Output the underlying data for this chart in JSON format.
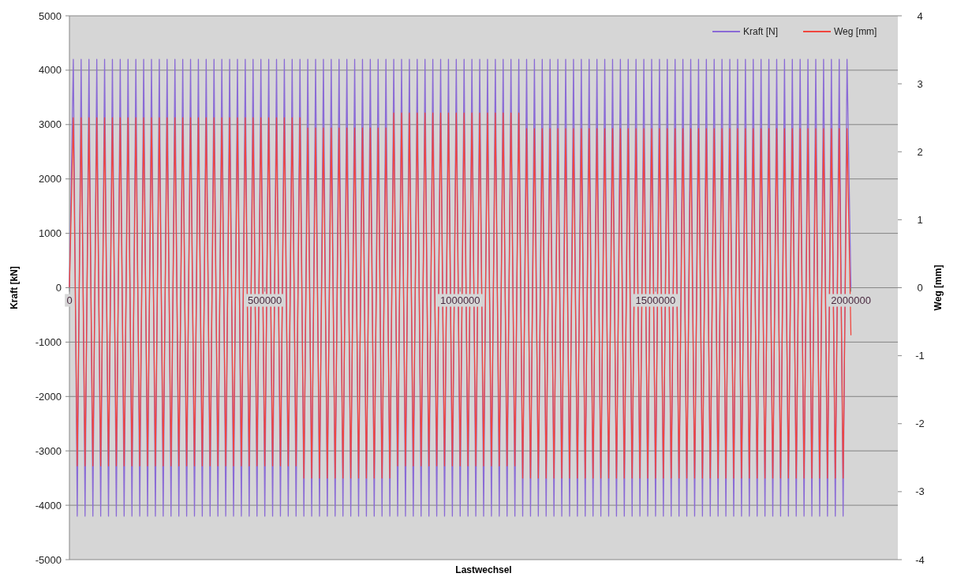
{
  "chart_data": {
    "type": "line",
    "xlabel": "Lastwechsel",
    "ylabel": "Kraft [kN]",
    "y2label": "Weg [mm]",
    "xlim": [
      0,
      2120000
    ],
    "xticks": [
      0,
      500000,
      1000000,
      1500000,
      2000000
    ],
    "ylim": [
      -5000,
      5000
    ],
    "yticks": [
      -5000,
      -4000,
      -3000,
      -2000,
      -1000,
      0,
      1000,
      2000,
      3000,
      4000,
      5000
    ],
    "y2lim": [
      -4,
      4
    ],
    "y2ticks": [
      -4,
      -3,
      -2,
      -1,
      0,
      1,
      2,
      3,
      4
    ],
    "grid": "y",
    "legend": "top right",
    "marker": "none",
    "line_style": "solid",
    "x": [
      0,
      10000,
      20000,
      30000,
      40000,
      50000,
      60000,
      70000,
      80000,
      90000,
      100000,
      110000,
      120000,
      130000,
      140000,
      150000,
      160000,
      170000,
      180000,
      190000,
      200000,
      210000,
      220000,
      230000,
      240000,
      250000,
      260000,
      270000,
      280000,
      290000,
      300000,
      310000,
      320000,
      330000,
      340000,
      350000,
      360000,
      370000,
      380000,
      390000,
      400000,
      410000,
      420000,
      430000,
      440000,
      450000,
      460000,
      470000,
      480000,
      490000,
      500000,
      510000,
      520000,
      530000,
      540000,
      550000,
      560000,
      570000,
      580000,
      590000,
      600000,
      610000,
      620000,
      630000,
      640000,
      650000,
      660000,
      670000,
      680000,
      690000,
      700000,
      710000,
      720000,
      730000,
      740000,
      750000,
      760000,
      770000,
      780000,
      790000,
      800000,
      810000,
      820000,
      830000,
      840000,
      850000,
      860000,
      870000,
      880000,
      890000,
      900000,
      910000,
      920000,
      930000,
      940000,
      950000,
      960000,
      970000,
      980000,
      990000,
      1000000,
      1010000,
      1020000,
      1030000,
      1040000,
      1050000,
      1060000,
      1070000,
      1080000,
      1090000,
      1100000,
      1110000,
      1120000,
      1130000,
      1140000,
      1150000,
      1160000,
      1170000,
      1180000,
      1190000,
      1200000,
      1210000,
      1220000,
      1230000,
      1240000,
      1250000,
      1260000,
      1270000,
      1280000,
      1290000,
      1300000,
      1310000,
      1320000,
      1330000,
      1340000,
      1350000,
      1360000,
      1370000,
      1380000,
      1390000,
      1400000,
      1410000,
      1420000,
      1430000,
      1440000,
      1450000,
      1460000,
      1470000,
      1480000,
      1490000,
      1500000,
      1510000,
      1520000,
      1530000,
      1540000,
      1550000,
      1560000,
      1570000,
      1580000,
      1590000,
      1600000,
      1610000,
      1620000,
      1630000,
      1640000,
      1650000,
      1660000,
      1670000,
      1680000,
      1690000,
      1700000,
      1710000,
      1720000,
      1730000,
      1740000,
      1750000,
      1760000,
      1770000,
      1780000,
      1790000,
      1800000,
      1810000,
      1820000,
      1830000,
      1840000,
      1850000,
      1860000,
      1870000,
      1880000,
      1890000,
      1900000,
      1910000,
      1920000,
      1930000,
      1940000,
      1950000,
      1960000,
      1970000,
      1980000,
      1990000,
      2000000
    ],
    "series": [
      {
        "name": "Kraft [N]",
        "color": "#8a6ad6",
        "axis": "y",
        "values": [
          0,
          4200,
          -4200,
          4200,
          -4200,
          4200,
          -4200,
          4200,
          -4200,
          4200,
          -4200,
          4200,
          -4200,
          4200,
          -4200,
          4200,
          -4200,
          4200,
          -4200,
          4200,
          -4200,
          4200,
          -4200,
          4200,
          -4200,
          4200,
          -4200,
          4200,
          -4200,
          4200,
          -4200,
          4200,
          -4200,
          4200,
          -4200,
          4200,
          -4200,
          4200,
          -4200,
          4200,
          -4200,
          4200,
          -4200,
          4200,
          -4200,
          4200,
          -4200,
          4200,
          -4200,
          4200,
          -4200,
          4200,
          -4200,
          4200,
          -4200,
          4200,
          -4200,
          4200,
          -4200,
          4200,
          -4200,
          4200,
          -4200,
          4200,
          -4200,
          4200,
          -4200,
          4200,
          -4200,
          4200,
          -4200,
          4200,
          -4200,
          4200,
          -4200,
          4200,
          -4200,
          4200,
          -4200,
          4200,
          -4200,
          4200,
          -4200,
          4200,
          -4200,
          4200,
          -4200,
          4200,
          -4200,
          4200,
          -4200,
          4200,
          -4200,
          4200,
          -4200,
          4200,
          -4200,
          4200,
          -4200,
          4200,
          -4200,
          4200,
          -4200,
          4200,
          -4200,
          4200,
          -4200,
          4200,
          -4200,
          4200,
          -4200,
          4200,
          -4200,
          4200,
          -4200,
          4200,
          -4200,
          4200,
          -4200,
          4200,
          -4200,
          4200,
          -4200,
          4200,
          -4200,
          4200,
          -4200,
          4200,
          -4200,
          4200,
          -4200,
          4200,
          -4200,
          4200,
          -4200,
          4200,
          -4200,
          4200,
          -4200,
          4200,
          -4200,
          4200,
          -4200,
          4200,
          -4200,
          4200,
          -4200,
          4200,
          -4200,
          4200,
          -4200,
          4200,
          -4200,
          4200,
          -4200,
          4200,
          -4200,
          4200,
          -4200,
          4200,
          -4200,
          4200,
          -4200,
          4200,
          -4200,
          4200,
          -4200,
          4200,
          -4200,
          4200,
          -4200,
          4200,
          -4200,
          4200,
          -4200,
          4200,
          -4200,
          4200,
          -4200,
          4200,
          -4200,
          4200,
          -4200,
          4200,
          -4200,
          4200,
          -4200,
          4200,
          -4200,
          4200,
          -4200,
          4200,
          -4200,
          4200,
          -4200,
          4200,
          -4200,
          4200,
          -4200,
          4200,
          0
        ]
      },
      {
        "name": "Weg [mm]",
        "color": "#f0463e",
        "axis": "y2",
        "values": [
          0,
          2.5,
          -2.62,
          2.5,
          -2.62,
          2.5,
          -2.62,
          2.5,
          -2.62,
          2.5,
          -2.62,
          2.5,
          -2.62,
          2.5,
          -2.62,
          2.5,
          -2.62,
          2.5,
          -2.62,
          2.5,
          -2.62,
          2.5,
          -2.62,
          2.5,
          -2.62,
          2.5,
          -2.62,
          2.5,
          -2.62,
          2.5,
          -2.62,
          2.5,
          -2.62,
          2.5,
          -2.62,
          2.5,
          -2.62,
          2.5,
          -2.62,
          2.5,
          -2.62,
          2.5,
          -2.62,
          2.5,
          -2.62,
          2.5,
          -2.62,
          2.5,
          -2.62,
          2.5,
          -2.62,
          2.5,
          -2.62,
          2.5,
          -2.62,
          2.5,
          -2.62,
          2.5,
          -2.62,
          2.5,
          -2.8,
          2.35,
          -2.8,
          2.35,
          -2.8,
          2.35,
          -2.8,
          2.35,
          -2.8,
          2.35,
          -2.8,
          2.35,
          -2.8,
          2.35,
          -2.8,
          2.35,
          -2.8,
          2.35,
          -2.8,
          2.35,
          -2.8,
          2.35,
          -2.8,
          2.57,
          -2.62,
          2.57,
          -2.62,
          2.57,
          -2.62,
          2.57,
          -2.62,
          2.57,
          -2.62,
          2.57,
          -2.62,
          2.57,
          -2.62,
          2.57,
          -2.62,
          2.57,
          -2.62,
          2.57,
          -2.62,
          2.57,
          -2.62,
          2.57,
          -2.62,
          2.57,
          -2.62,
          2.57,
          -2.62,
          2.57,
          -2.62,
          2.57,
          -2.62,
          2.57,
          -2.8,
          2.34,
          -2.8,
          2.34,
          -2.8,
          2.34,
          -2.8,
          2.34,
          -2.8,
          2.34,
          -2.8,
          2.34,
          -2.8,
          2.34,
          -2.8,
          2.34,
          -2.8,
          2.34,
          -2.8,
          2.34,
          -2.8,
          2.34,
          -2.8,
          2.34,
          -2.8,
          2.34,
          -2.8,
          2.34,
          -2.8,
          2.34,
          -2.8,
          2.34,
          -2.8,
          2.34,
          -2.8,
          2.34,
          -2.8,
          2.34,
          -2.8,
          2.34,
          -2.8,
          2.34,
          -2.8,
          2.34,
          -2.8,
          2.34,
          -2.8,
          2.34,
          -2.8,
          2.34,
          -2.8,
          2.34,
          -2.8,
          2.34,
          -2.8,
          2.34,
          -2.8,
          2.34,
          -2.8,
          2.34,
          -2.8,
          2.34,
          -2.8,
          2.34,
          -2.8,
          2.34,
          -2.8,
          2.34,
          -2.8,
          2.34,
          -2.8,
          2.34,
          -2.8,
          2.34,
          -2.8,
          2.34,
          -2.8,
          2.34,
          -2.8,
          2.34,
          -2.8,
          2.34,
          -2.8,
          2.34,
          -0.7
        ]
      }
    ]
  }
}
